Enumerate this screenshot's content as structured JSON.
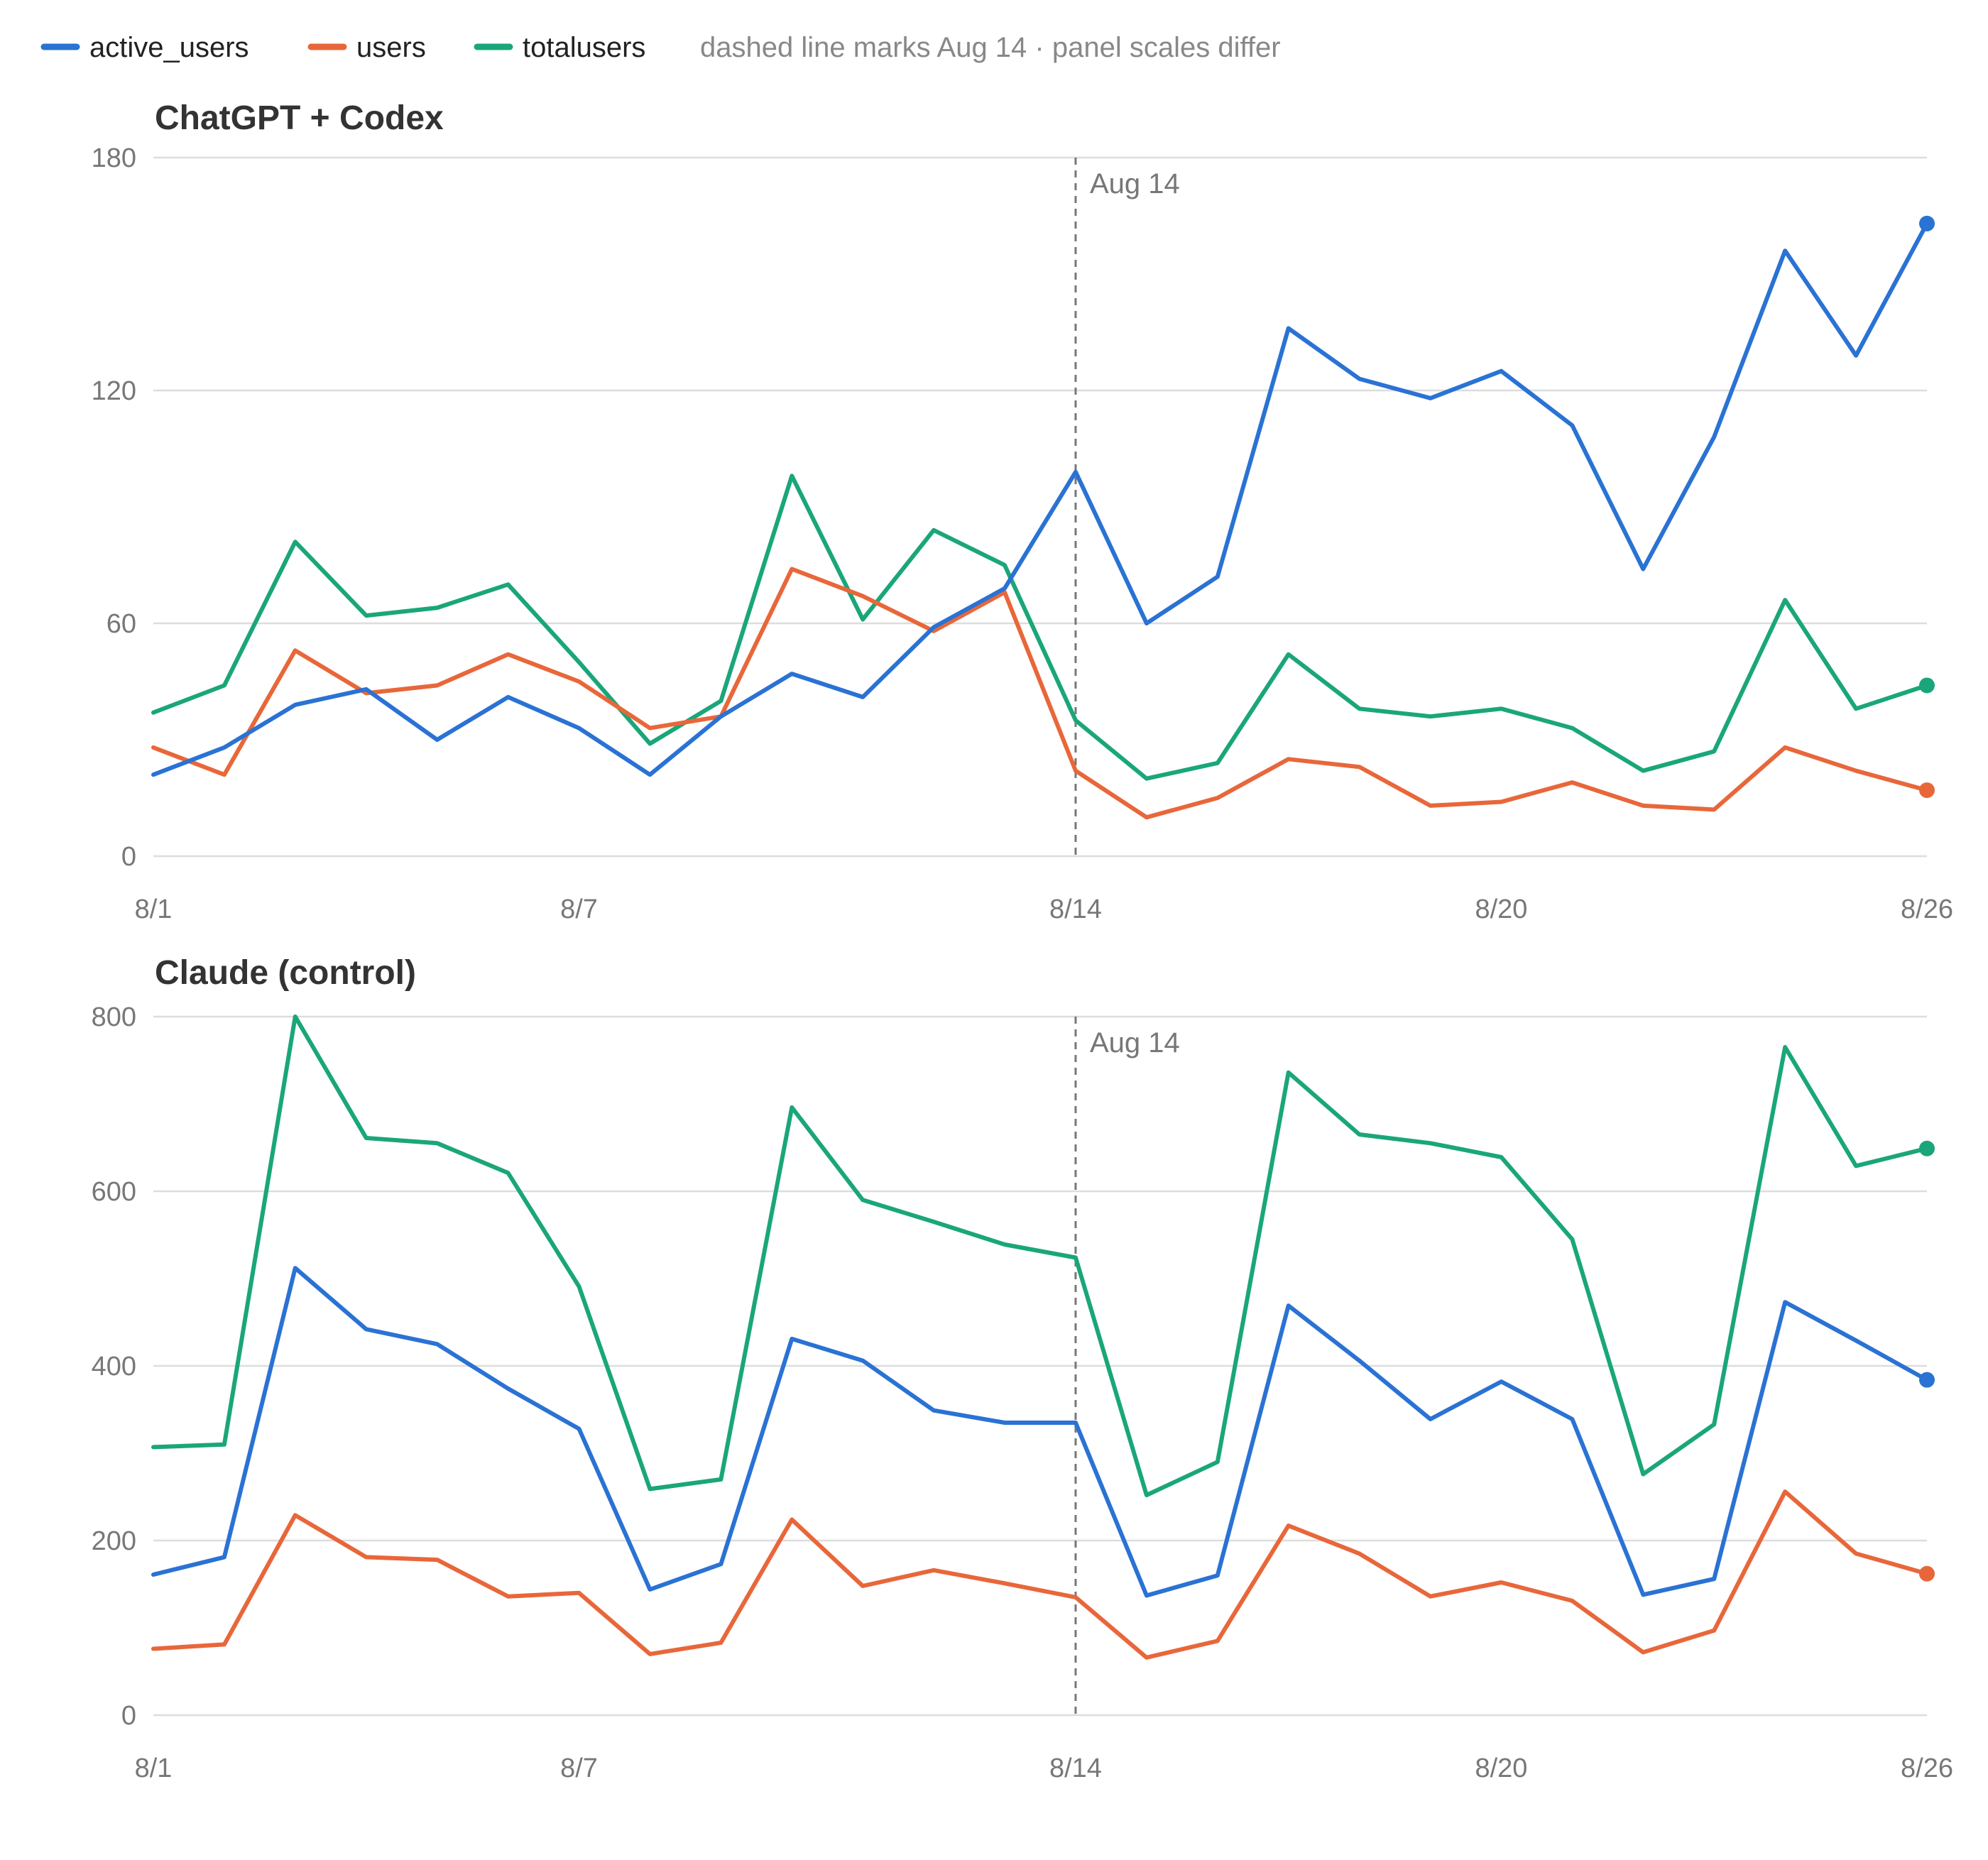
{
  "legend": {
    "items": [
      {
        "key": "active_users",
        "label": "active_users",
        "color": "#2a72d4"
      },
      {
        "key": "users",
        "label": "users",
        "color": "#e8673a"
      },
      {
        "key": "totalusers",
        "label": "totalusers",
        "color": "#1aa67a"
      }
    ],
    "note": "dashed line marks Aug 14 · panel scales differ"
  },
  "chart_data": [
    {
      "type": "line",
      "title": "ChatGPT + Codex",
      "x": [
        "8/1",
        "8/2",
        "8/3",
        "8/4",
        "8/5",
        "8/6",
        "8/7",
        "8/8",
        "8/9",
        "8/10",
        "8/11",
        "8/12",
        "8/13",
        "8/14",
        "8/15",
        "8/16",
        "8/17",
        "8/18",
        "8/19",
        "8/20",
        "8/21",
        "8/22",
        "8/23",
        "8/24",
        "8/25",
        "8/26"
      ],
      "x_tick_labels": [
        "8/1",
        "8/7",
        "8/14",
        "8/20",
        "8/26"
      ],
      "ylim": [
        0,
        180
      ],
      "y_ticks": [
        0,
        60,
        120,
        180
      ],
      "grid": true,
      "marker": {
        "x": "8/14",
        "label": "Aug 14"
      },
      "series": [
        {
          "key": "active_users",
          "values": [
            21,
            28,
            39,
            43,
            30,
            41,
            33,
            21,
            36,
            47,
            41,
            59,
            69,
            99,
            60,
            72,
            136,
            123,
            118,
            125,
            111,
            74,
            108,
            156,
            129,
            163
          ]
        },
        {
          "key": "users",
          "values": [
            28,
            21,
            53,
            42,
            44,
            52,
            45,
            33,
            36,
            74,
            67,
            58,
            68,
            22,
            10,
            15,
            25,
            23,
            13,
            14,
            19,
            13,
            12,
            28,
            22,
            17
          ]
        },
        {
          "key": "totalusers",
          "values": [
            37,
            44,
            81,
            62,
            64,
            70,
            50,
            29,
            40,
            98,
            61,
            84,
            75,
            35,
            20,
            24,
            52,
            38,
            36,
            38,
            33,
            22,
            27,
            66,
            38,
            44
          ]
        }
      ]
    },
    {
      "type": "line",
      "title": "Claude (control)",
      "x": [
        "8/1",
        "8/2",
        "8/3",
        "8/4",
        "8/5",
        "8/6",
        "8/7",
        "8/8",
        "8/9",
        "8/10",
        "8/11",
        "8/12",
        "8/13",
        "8/14",
        "8/15",
        "8/16",
        "8/17",
        "8/18",
        "8/19",
        "8/20",
        "8/21",
        "8/22",
        "8/23",
        "8/24",
        "8/25",
        "8/26"
      ],
      "x_tick_labels": [
        "8/1",
        "8/7",
        "8/14",
        "8/20",
        "8/26"
      ],
      "ylim": [
        0,
        800
      ],
      "y_ticks": [
        0,
        200,
        400,
        600,
        800
      ],
      "grid": true,
      "marker": {
        "x": "8/14",
        "label": "Aug 14"
      },
      "series": [
        {
          "key": "active_users",
          "values": [
            161,
            181,
            512,
            442,
            425,
            374,
            328,
            144,
            173,
            431,
            406,
            349,
            335,
            335,
            137,
            160,
            469,
            406,
            339,
            382,
            339,
            138,
            156,
            473,
            429,
            384
          ]
        },
        {
          "key": "users",
          "values": [
            76,
            81,
            229,
            181,
            178,
            136,
            140,
            70,
            83,
            224,
            148,
            166,
            151,
            135,
            66,
            85,
            217,
            185,
            136,
            152,
            131,
            72,
            97,
            256,
            185,
            162
          ]
        },
        {
          "key": "totalusers",
          "values": [
            307,
            310,
            800,
            661,
            655,
            621,
            491,
            259,
            270,
            696,
            590,
            565,
            539,
            524,
            252,
            290,
            736,
            665,
            655,
            639,
            545,
            276,
            333,
            765,
            629,
            649
          ]
        }
      ]
    }
  ]
}
